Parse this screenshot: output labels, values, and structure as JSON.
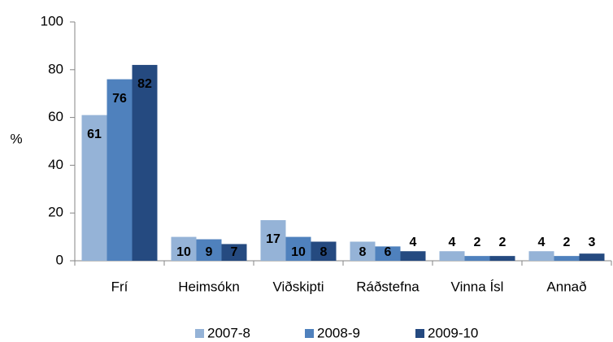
{
  "chart_data": {
    "type": "bar",
    "y_label": "%",
    "categories": [
      "Frí",
      "Heimsókn",
      "Viðskipti",
      "Ráðstefna",
      "Vinna Ísl",
      "Annað"
    ],
    "series": [
      {
        "name": "2007-8",
        "color": "#95b3d7",
        "values": [
          61,
          10,
          17,
          8,
          4,
          4
        ]
      },
      {
        "name": "2008-9",
        "color": "#4f81bd",
        "values": [
          76,
          9,
          10,
          6,
          2,
          2
        ]
      },
      {
        "name": "2009-10",
        "color": "#254a80",
        "values": [
          82,
          7,
          8,
          4,
          2,
          3
        ]
      }
    ],
    "ylim": [
      0,
      100
    ],
    "yticks": [
      0,
      20,
      40,
      60,
      80,
      100
    ],
    "grid": false,
    "legend": "bottom"
  }
}
